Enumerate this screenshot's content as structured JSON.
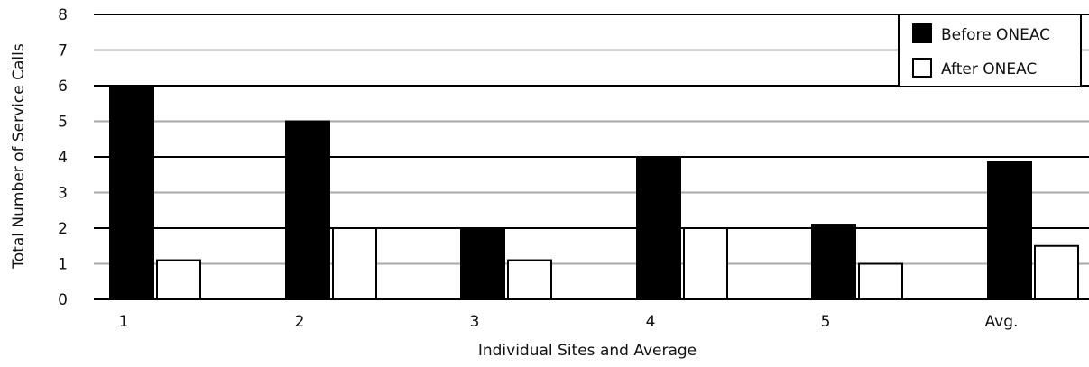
{
  "chart_data": {
    "type": "bar",
    "title": "",
    "xlabel": "Individual Sites and Average",
    "ylabel": "Total Number of Service Calls",
    "categories": [
      "1",
      "2",
      "3",
      "4",
      "5",
      "Avg."
    ],
    "series": [
      {
        "name": "Before ONEAC",
        "values": [
          6,
          5,
          2,
          4,
          2.1,
          3.85
        ],
        "color": "#000000"
      },
      {
        "name": "After ONEAC",
        "values": [
          1.1,
          2,
          1.1,
          2,
          1,
          1.5
        ],
        "color": "#ffffff"
      }
    ],
    "ylim": [
      0,
      8
    ],
    "yticks": [
      "0",
      "1",
      "2",
      "3",
      "4",
      "5",
      "6",
      "7",
      "8"
    ],
    "grid": true,
    "legend_position": "top-right"
  }
}
